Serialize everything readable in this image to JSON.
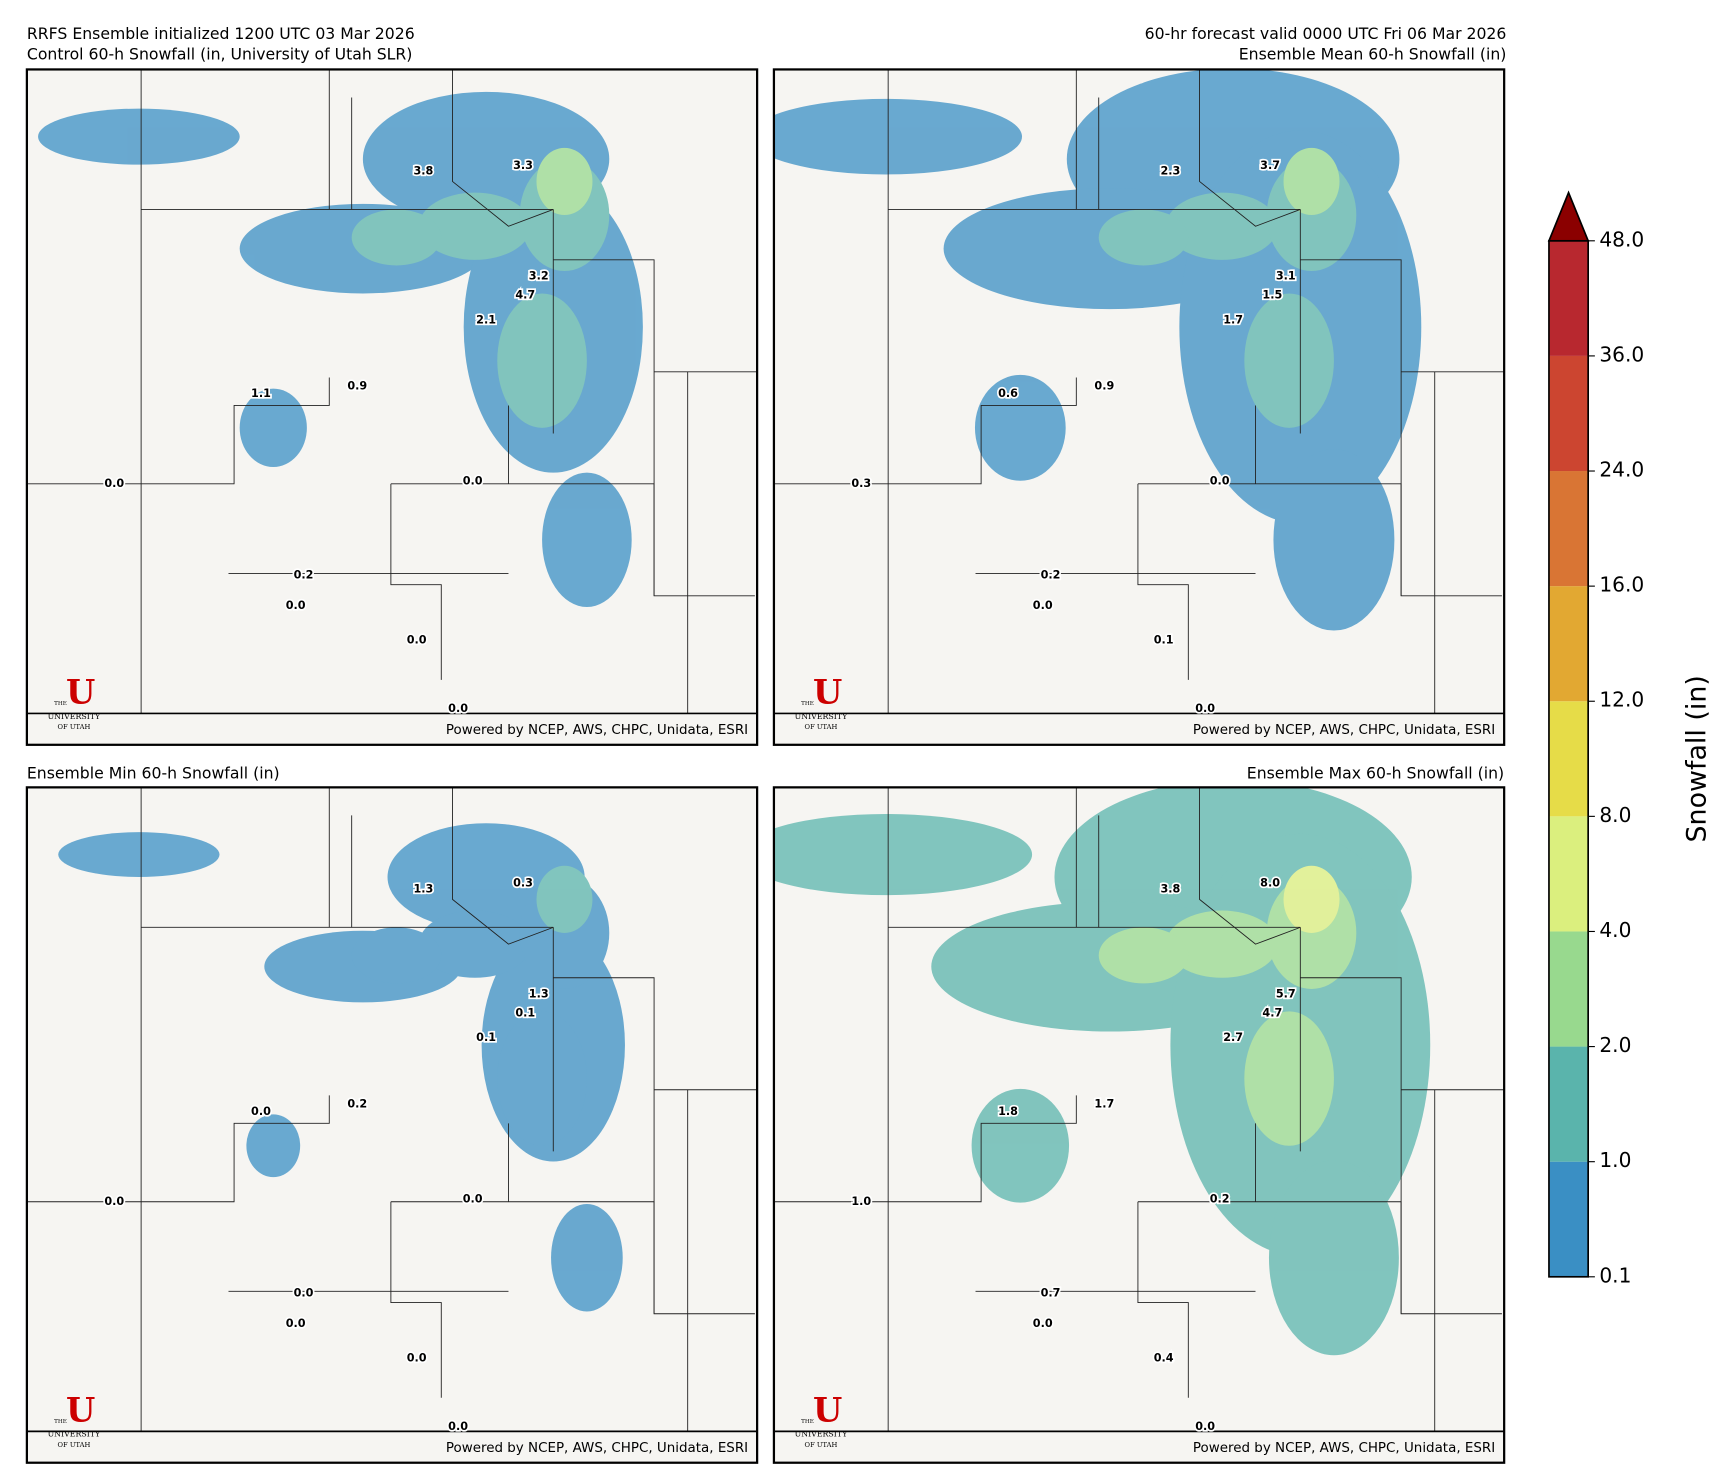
{
  "header": {
    "left": [
      "RRFS Ensemble initialized 1200 UTC 03 Mar 2026",
      "Control 60-h Snowfall (in, University of Utah SLR)"
    ],
    "right": [
      "60-hr forecast valid 0000 UTC Fri 06 Mar 2026",
      "Ensemble Mean 60-h Snowfall (in)"
    ]
  },
  "panels": [
    {
      "title": "Control 60-h Snowfall (in, University of Utah SLR)",
      "point_labels": [
        "3.8",
        "3.3",
        "3.2",
        "4.7",
        "2.1",
        "1.1",
        "0.9",
        "0.0",
        "0.0",
        "0.2",
        "0.0",
        "0.0",
        "0.0"
      ]
    },
    {
      "title": "Ensemble Mean 60-h Snowfall (in)",
      "point_labels": [
        "2.3",
        "3.7",
        "3.1",
        "1.5",
        "1.7",
        "0.6",
        "0.9",
        "0.3",
        "0.0",
        "0.2",
        "0.0",
        "0.1",
        "0.0"
      ]
    },
    {
      "title": "Ensemble Min 60-h Snowfall (in)",
      "point_labels": [
        "1.3",
        "0.3",
        "1.3",
        "0.1",
        "0.1",
        "0.0",
        "0.2",
        "0.0",
        "0.0",
        "0.0",
        "0.0",
        "0.0",
        "0.0"
      ]
    },
    {
      "title": "Ensemble Max 60-h Snowfall (in)",
      "point_labels": [
        "3.8",
        "8.0",
        "5.7",
        "4.7",
        "2.7",
        "1.8",
        "1.7",
        "1.0",
        "0.2",
        "0.7",
        "0.0",
        "0.4",
        "0.0"
      ]
    }
  ],
  "credit": "Powered by NCEP, AWS, CHPC, Unidata, ESRI",
  "logo": {
    "mark": "U",
    "line1": "THE",
    "line2": "UNIVERSITY",
    "line3": "OF UTAH"
  },
  "colorbar": {
    "label": "Snowfall (in)",
    "ticks": [
      {
        "value": 0.1,
        "label": "0.1"
      },
      {
        "value": 1,
        "label": "1.0"
      },
      {
        "value": 2,
        "label": "2.0"
      },
      {
        "value": 4,
        "label": "4.0"
      },
      {
        "value": 8,
        "label": "8.0"
      },
      {
        "value": 12,
        "label": "12.0"
      },
      {
        "value": 16,
        "label": "16.0"
      },
      {
        "value": 24,
        "label": "24.0"
      },
      {
        "value": 36,
        "label": "36.0"
      },
      {
        "value": 48,
        "label": "48.0"
      }
    ],
    "colors": [
      "#3a8fc4",
      "#5ab4ac",
      "#98d98e",
      "#dbef7e",
      "#e6dc48",
      "#e2a832",
      "#d97534",
      "#cc4530",
      "#b8282f"
    ],
    "extend_color": "#8b0000"
  }
}
